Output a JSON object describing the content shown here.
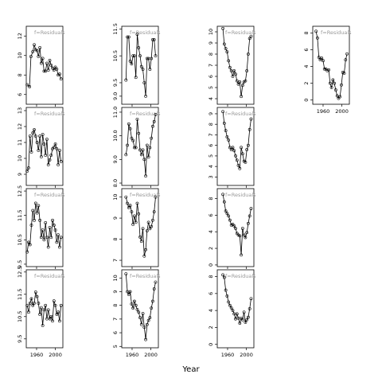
{
  "figure": {
    "xlabel": "Year",
    "strip_label": "f=Residuals",
    "year_ticks": [
      "1960",
      "2000"
    ]
  },
  "chart_data": [
    {
      "type": "scatter",
      "col": 0,
      "row": 0,
      "ylim": [
        5,
        13
      ],
      "yticks": [
        "6",
        "8",
        "10",
        "12"
      ],
      "x": [
        1940,
        1945,
        1948,
        1952,
        1955,
        1958,
        1961,
        1964,
        1967,
        1970,
        1973,
        1976,
        1979,
        1982,
        1985,
        1988,
        1991,
        1994,
        1997,
        2000,
        2003,
        2006,
        2009,
        2012
      ],
      "y": [
        7,
        6.8,
        9.9,
        10.4,
        11.1,
        10.6,
        10.5,
        9.9,
        10.8,
        9.2,
        9.7,
        8.4,
        8.4,
        9.2,
        8.5,
        9.5,
        9.0,
        8.7,
        8.5,
        8.8,
        8.6,
        8.0,
        8.1,
        7.6
      ]
    },
    {
      "type": "scatter",
      "col": 1,
      "row": 0,
      "ylim": [
        8.7,
        11.6
      ],
      "yticks": [
        "9.0",
        "9.5",
        "10.5",
        "11.5"
      ],
      "x": [
        1947,
        1950,
        1953,
        1956,
        1959,
        1962,
        1965,
        1968,
        1971,
        1974,
        1977,
        1980,
        1983,
        1986,
        1989,
        1992,
        1995,
        1998,
        2001,
        2004,
        2007,
        2010
      ],
      "y": [
        9.6,
        11.2,
        11.2,
        10.3,
        10.2,
        10.5,
        10.5,
        9.7,
        11.3,
        10.8,
        10.5,
        10.1,
        10.0,
        9.5,
        9.0,
        10.4,
        10.4,
        10.0,
        10.4,
        11.1,
        11.1,
        10.5
      ]
    },
    {
      "type": "scatter",
      "col": 2,
      "row": 0,
      "ylim": [
        3.5,
        10.5
      ],
      "yticks": [
        "4",
        "5",
        "6",
        "7",
        "8",
        "9",
        "10"
      ],
      "x": [
        1950,
        1953,
        1956,
        1959,
        1962,
        1965,
        1968,
        1971,
        1974,
        1977,
        1980,
        1983,
        1986,
        1989,
        1992,
        1995,
        1998,
        2001,
        2004,
        2007,
        2010
      ],
      "y": [
        10.3,
        8.9,
        8.5,
        8.2,
        7.4,
        6.8,
        6.5,
        6.0,
        6.5,
        6.2,
        5.6,
        5.3,
        5.5,
        4.2,
        5.2,
        5.5,
        5.6,
        6.5,
        8.0,
        9.4,
        9.6
      ]
    },
    {
      "type": "scatter",
      "col": 3,
      "row": 0,
      "ylim": [
        -0.5,
        8.8
      ],
      "yticks": [
        "0",
        "2",
        "4",
        "6",
        "8"
      ],
      "x": [
        1945,
        1948,
        1951,
        1954,
        1957,
        1960,
        1963,
        1966,
        1969,
        1972,
        1975,
        1978,
        1981,
        1984,
        1987,
        1990,
        1993,
        1996,
        1999,
        2002,
        2005,
        2008,
        2011
      ],
      "y": [
        8.2,
        7.4,
        5.1,
        4.8,
        5.0,
        4.7,
        3.7,
        3.7,
        3.5,
        3.6,
        2.0,
        1.5,
        2.4,
        2.0,
        1.2,
        0.5,
        0.2,
        0.4,
        1.8,
        3.3,
        3.2,
        4.8,
        5.5
      ]
    },
    {
      "type": "scatter",
      "col": 0,
      "row": 1,
      "ylim": [
        8.3,
        13.2
      ],
      "yticks": [
        "9",
        "10",
        "11",
        "12",
        "13"
      ],
      "x": [
        1940,
        1943,
        1946,
        1949,
        1952,
        1955,
        1958,
        1961,
        1964,
        1967,
        1970,
        1973,
        1976,
        1979,
        1982,
        1985,
        1988,
        1991,
        1994,
        1997,
        2000,
        2003,
        2006,
        2009,
        2012
      ],
      "y": [
        9.2,
        9.4,
        11.4,
        10.4,
        11.6,
        11.8,
        11.4,
        11.0,
        10.5,
        11.4,
        10.1,
        11.5,
        10.9,
        10.2,
        11.2,
        9.6,
        9.9,
        10.2,
        10.6,
        10.7,
        10.9,
        10.6,
        9.6,
        10.5,
        9.8
      ]
    },
    {
      "type": "scatter",
      "col": 1,
      "row": 1,
      "ylim": [
        7.9,
        11.2
      ],
      "yticks": [
        "8.0",
        "9.0",
        "10.0",
        "11.0"
      ],
      "x": [
        1947,
        1950,
        1953,
        1956,
        1959,
        1962,
        1965,
        1968,
        1971,
        1974,
        1977,
        1980,
        1983,
        1986,
        1989,
        1992,
        1995,
        1998,
        2001,
        2004,
        2007,
        2010
      ],
      "y": [
        9.2,
        9.6,
        10.5,
        10.3,
        9.9,
        9.8,
        9.5,
        9.5,
        10.7,
        10.1,
        9.4,
        9.2,
        9.4,
        9.0,
        8.3,
        9.6,
        9.1,
        9.5,
        9.9,
        10.4,
        10.6,
        10.9
      ]
    },
    {
      "type": "scatter",
      "col": 2,
      "row": 1,
      "ylim": [
        2.2,
        9.6
      ],
      "yticks": [
        "3",
        "4",
        "5",
        "6",
        "7",
        "8",
        "9"
      ],
      "x": [
        1950,
        1953,
        1956,
        1959,
        1962,
        1965,
        1968,
        1971,
        1974,
        1977,
        1980,
        1983,
        1986,
        1989,
        1992,
        1995,
        1998,
        2001,
        2004,
        2007,
        2010
      ],
      "y": [
        9.2,
        8.1,
        7.4,
        6.8,
        6.5,
        5.8,
        5.6,
        5.8,
        5.5,
        5.0,
        4.6,
        4.1,
        3.8,
        5.8,
        5.2,
        4.5,
        4.4,
        5.6,
        6.0,
        7.5,
        8.5
      ]
    },
    {
      "type": "scatter",
      "col": 0,
      "row": 2,
      "ylim": [
        9.4,
        12.6
      ],
      "yticks": [
        "9.5",
        "10.5",
        "11.5",
        "12.5"
      ],
      "x": [
        1940,
        1943,
        1946,
        1949,
        1952,
        1955,
        1958,
        1961,
        1964,
        1967,
        1970,
        1973,
        1976,
        1979,
        1982,
        1985,
        1988,
        1991,
        1994,
        1997,
        2000,
        2003,
        2006,
        2009,
        2012
      ],
      "y": [
        10.0,
        10.4,
        10.3,
        11.1,
        11.7,
        11.3,
        12.0,
        11.6,
        11.9,
        11.3,
        10.6,
        10.9,
        10.5,
        11.2,
        10.6,
        10.2,
        11.0,
        10.6,
        11.3,
        11.1,
        10.9,
        10.4,
        10.7,
        10.2,
        10.6
      ]
    },
    {
      "type": "scatter",
      "col": 1,
      "row": 2,
      "ylim": [
        6.7,
        10.4
      ],
      "yticks": [
        "7",
        "8",
        "9",
        "10"
      ],
      "x": [
        1947,
        1950,
        1953,
        1956,
        1959,
        1962,
        1965,
        1968,
        1971,
        1974,
        1977,
        1980,
        1983,
        1986,
        1989,
        1992,
        1995,
        1998,
        2001,
        2004,
        2007,
        2010
      ],
      "y": [
        10.0,
        9.7,
        9.5,
        9.6,
        9.3,
        8.7,
        9.1,
        8.8,
        9.7,
        9.2,
        8.1,
        7.9,
        8.5,
        7.2,
        7.5,
        8.4,
        8.8,
        8.5,
        8.6,
        8.9,
        9.3,
        10.0
      ]
    },
    {
      "type": "scatter",
      "col": 2,
      "row": 2,
      "ylim": [
        -0.2,
        9.2
      ],
      "yticks": [
        "0",
        "2",
        "4",
        "6",
        "8"
      ],
      "x": [
        1950,
        1953,
        1956,
        1959,
        1962,
        1965,
        1968,
        1971,
        1974,
        1977,
        1980,
        1983,
        1986,
        1989,
        1992,
        1995,
        1998,
        2001,
        2004,
        2007,
        2010
      ],
      "y": [
        8.5,
        7.6,
        6.5,
        6.2,
        5.9,
        5.4,
        4.8,
        4.9,
        4.7,
        4.4,
        3.8,
        3.6,
        3.5,
        1.2,
        4.4,
        3.6,
        3.3,
        3.9,
        5.0,
        5.9,
        6.8
      ]
    },
    {
      "type": "scatter",
      "col": 0,
      "row": 3,
      "ylim": [
        9.1,
        12.6
      ],
      "yticks": [
        "9.5",
        "10.5",
        "11.5",
        "12.5"
      ],
      "x": [
        1940,
        1943,
        1946,
        1949,
        1952,
        1955,
        1958,
        1961,
        1964,
        1967,
        1970,
        1973,
        1976,
        1979,
        1982,
        1985,
        1988,
        1991,
        1994,
        1997,
        2000,
        2003,
        2006,
        2009,
        2012
      ],
      "y": [
        11.0,
        10.7,
        11.1,
        11.3,
        11.0,
        11.1,
        11.6,
        11.4,
        11.1,
        10.6,
        10.9,
        10.1,
        10.8,
        11.0,
        10.4,
        10.8,
        10.4,
        10.5,
        10.3,
        11.2,
        11.0,
        10.6,
        10.7,
        10.3,
        11.0
      ]
    },
    {
      "type": "scatter",
      "col": 1,
      "row": 3,
      "ylim": [
        4.9,
        10.6
      ],
      "yticks": [
        "5",
        "6",
        "7",
        "8",
        "9",
        "10"
      ],
      "x": [
        1947,
        1950,
        1953,
        1956,
        1959,
        1962,
        1965,
        1968,
        1971,
        1974,
        1977,
        1980,
        1983,
        1986,
        1989,
        1992,
        1995,
        1998,
        2001,
        2004,
        2007,
        2010
      ],
      "y": [
        10.3,
        9.0,
        8.8,
        9.0,
        8.1,
        7.8,
        8.3,
        8.0,
        7.7,
        7.5,
        7.1,
        6.6,
        7.4,
        6.4,
        5.5,
        6.6,
        6.9,
        7.1,
        7.8,
        8.3,
        9.2,
        9.7
      ]
    },
    {
      "type": "scatter",
      "col": 2,
      "row": 3,
      "ylim": [
        -0.4,
        8.8
      ],
      "yticks": [
        "0",
        "2",
        "4",
        "6",
        "8"
      ],
      "x": [
        1950,
        1953,
        1956,
        1959,
        1962,
        1965,
        1968,
        1971,
        1974,
        1977,
        1980,
        1983,
        1986,
        1989,
        1992,
        1995,
        1998,
        2001,
        2004,
        2007,
        2010
      ],
      "y": [
        8.2,
        7.9,
        6.4,
        5.7,
        5.0,
        4.6,
        4.3,
        4.0,
        3.6,
        3.0,
        3.6,
        3.1,
        2.5,
        3.1,
        2.9,
        3.8,
        2.6,
        2.9,
        3.2,
        4.2,
        5.4
      ]
    }
  ]
}
